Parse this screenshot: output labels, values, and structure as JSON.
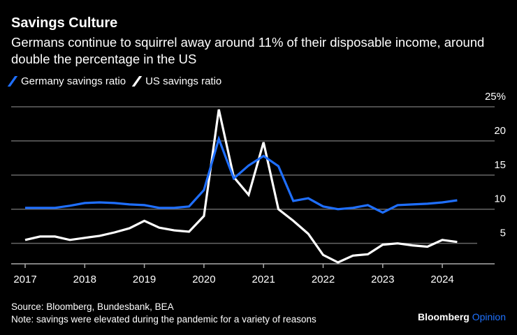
{
  "title": "Savings Culture",
  "subtitle": "Germans continue to squirrel away around 11% of their disposable income, around double the percentage in the US",
  "source": "Source: Bloomberg, Bundesbank, BEA",
  "note": "Note: savings were elevated during the pandemic for a variety of reasons",
  "brand": {
    "name": "Bloomberg",
    "suffix": "Opinion"
  },
  "chart_data": {
    "type": "line",
    "title": "Savings Culture",
    "xlabel": "",
    "ylabel": "",
    "ylim": [
      2,
      25
    ],
    "yticks": [
      {
        "v": 25,
        "label": "25%"
      },
      {
        "v": 20,
        "label": "20"
      },
      {
        "v": 15,
        "label": "15"
      },
      {
        "v": 10,
        "label": "10"
      },
      {
        "v": 5,
        "label": "5"
      }
    ],
    "xticks": [
      {
        "v": 2017,
        "label": "2017"
      },
      {
        "v": 2018,
        "label": "2018"
      },
      {
        "v": 2019,
        "label": "2019"
      },
      {
        "v": 2020,
        "label": "2020"
      },
      {
        "v": 2021,
        "label": "2021"
      },
      {
        "v": 2022,
        "label": "2022"
      },
      {
        "v": 2023,
        "label": "2023"
      },
      {
        "v": 2024,
        "label": "2024"
      }
    ],
    "x_start": 2017,
    "x_step": 0.25,
    "legend_position": "top-left",
    "series": [
      {
        "name": "Germany savings ratio",
        "color": "#1f6fff",
        "values": [
          10.2,
          10.2,
          10.2,
          10.5,
          10.9,
          11.0,
          10.9,
          10.7,
          10.6,
          10.2,
          10.2,
          10.4,
          12.8,
          20.3,
          14.5,
          16.4,
          17.8,
          16.3,
          11.2,
          11.6,
          10.4,
          10.0,
          10.2,
          10.6,
          9.5,
          10.6,
          10.7,
          10.8,
          11.0,
          11.3
        ]
      },
      {
        "name": "US savings ratio",
        "color": "#ffffff",
        "values": [
          5.5,
          6.0,
          6.0,
          5.5,
          5.8,
          6.1,
          6.6,
          7.2,
          8.3,
          7.3,
          6.9,
          6.7,
          9.0,
          24.6,
          14.7,
          12.1,
          19.8,
          10.0,
          8.3,
          6.4,
          3.3,
          2.2,
          3.2,
          3.4,
          4.8,
          5.0,
          4.7,
          4.5,
          5.5,
          5.2
        ]
      }
    ]
  }
}
